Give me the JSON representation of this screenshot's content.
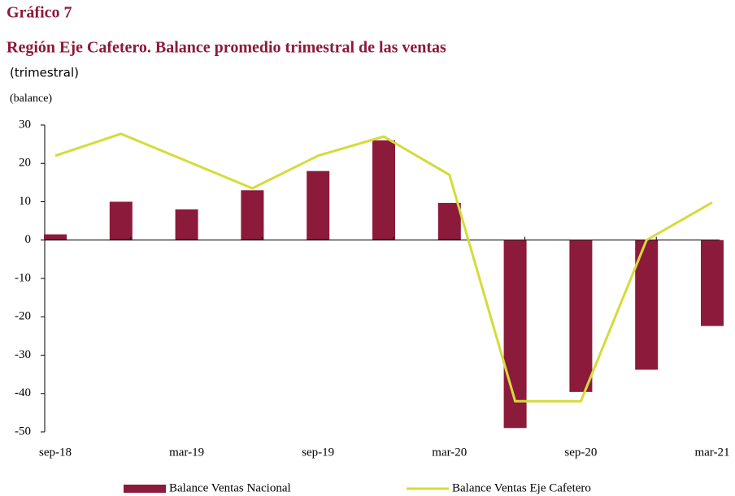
{
  "chart_data": {
    "type": "bar_line",
    "title": "Gráfico 7",
    "subtitle": "Región Eje Cafetero. Balance promedio trimestral de las ventas",
    "frequency_label": "(trimestral)",
    "y_label": "(balance)",
    "categories": [
      "sep-18",
      null,
      "mar-19",
      null,
      "sep-19",
      null,
      "mar-20",
      null,
      "sep-20",
      null,
      "mar-21"
    ],
    "series": [
      {
        "name": "Balance Ventas Nacional",
        "type": "bar",
        "color": "#8c1a3b",
        "values": [
          1.5,
          10,
          8,
          13,
          18,
          26,
          9.7,
          -49,
          -39.6,
          -33.8,
          -22.4
        ]
      },
      {
        "name": "Balance Ventas Eje Cafetero",
        "type": "line",
        "color": "#d4dc3a",
        "values": [
          22,
          27.7,
          20.6,
          13.5,
          22,
          27,
          17,
          -42,
          -42,
          0,
          9.8
        ]
      }
    ],
    "ylim": [
      -50,
      30
    ],
    "yticks": [
      -50,
      -40,
      -30,
      -20,
      -10,
      0,
      10,
      20,
      30
    ],
    "legend": "bottom"
  }
}
